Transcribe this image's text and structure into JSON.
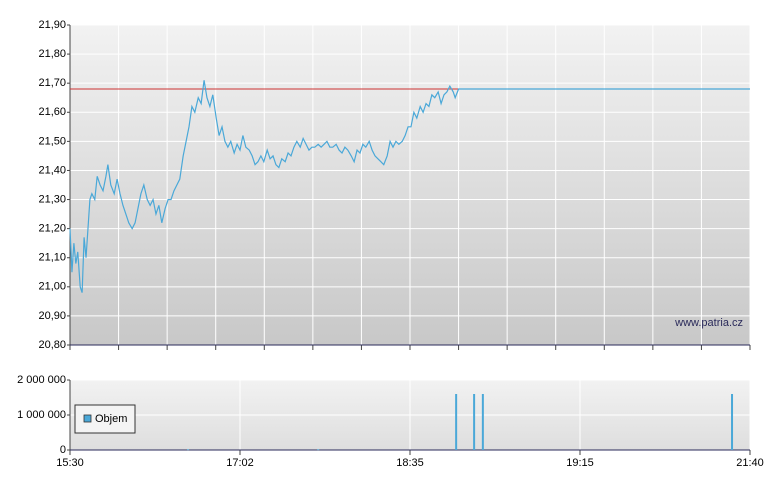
{
  "chart_data": [
    {
      "type": "line",
      "watermark": "www.patria.cz",
      "xlim": [
        0,
        14
      ],
      "xticks": [
        0,
        1,
        2,
        3,
        4,
        5,
        6,
        7,
        8,
        9,
        10,
        11,
        12,
        13,
        14
      ],
      "ylim": [
        20.8,
        21.9
      ],
      "yticks": [
        {
          "value": 20.8,
          "label": "20,80"
        },
        {
          "value": 20.9,
          "label": "20,90"
        },
        {
          "value": 21.0,
          "label": "21,00"
        },
        {
          "value": 21.1,
          "label": "21,10"
        },
        {
          "value": 21.2,
          "label": "21,20"
        },
        {
          "value": 21.3,
          "label": "21,30"
        },
        {
          "value": 21.4,
          "label": "21,40"
        },
        {
          "value": 21.5,
          "label": "21,50"
        },
        {
          "value": 21.6,
          "label": "21,60"
        },
        {
          "value": 21.7,
          "label": "21,70"
        },
        {
          "value": 21.8,
          "label": "21,80"
        },
        {
          "value": 21.9,
          "label": "21,90"
        }
      ],
      "grid": true,
      "reference": {
        "value": 21.68,
        "x": [
          0,
          8
        ],
        "color": "#cc3333"
      },
      "x": [
        0,
        0.04,
        0.08,
        0.12,
        0.16,
        0.21,
        0.25,
        0.29,
        0.33,
        0.37,
        0.41,
        0.45,
        0.51,
        0.56,
        0.62,
        0.68,
        0.74,
        0.78,
        0.84,
        0.91,
        0.97,
        1.03,
        1.09,
        1.15,
        1.21,
        1.28,
        1.34,
        1.4,
        1.46,
        1.52,
        1.59,
        1.65,
        1.71,
        1.77,
        1.83,
        1.89,
        1.96,
        2.02,
        2.08,
        2.14,
        2.2,
        2.26,
        2.33,
        2.39,
        2.45,
        2.51,
        2.57,
        2.64,
        2.7,
        2.76,
        2.82,
        2.88,
        2.94,
        3.01,
        3.07,
        3.13,
        3.19,
        3.25,
        3.31,
        3.38,
        3.44,
        3.5,
        3.56,
        3.62,
        3.69,
        3.75,
        3.81,
        3.87,
        3.93,
        3.99,
        4.06,
        4.12,
        4.18,
        4.24,
        4.3,
        4.36,
        4.43,
        4.49,
        4.55,
        4.61,
        4.67,
        4.74,
        4.8,
        4.86,
        4.92,
        4.98,
        5.04,
        5.11,
        5.17,
        5.23,
        5.29,
        5.35,
        5.41,
        5.48,
        5.54,
        5.6,
        5.66,
        5.72,
        5.79,
        5.85,
        5.91,
        5.97,
        6.03,
        6.09,
        6.16,
        6.22,
        6.28,
        6.34,
        6.4,
        6.46,
        6.53,
        6.59,
        6.65,
        6.71,
        6.77,
        6.84,
        6.9,
        6.96,
        7.02,
        7.08,
        7.14,
        7.21,
        7.27,
        7.33,
        7.39,
        7.45,
        7.51,
        7.58,
        7.64,
        7.7,
        7.76,
        7.82,
        7.89,
        7.93,
        8,
        14
      ],
      "series": [
        {
          "color": "#4aa8d8",
          "values": [
            21.2,
            21.05,
            21.15,
            21.08,
            21.12,
            21.0,
            20.98,
            21.17,
            21.1,
            21.2,
            21.3,
            21.32,
            21.3,
            21.38,
            21.35,
            21.33,
            21.38,
            21.42,
            21.35,
            21.32,
            21.37,
            21.32,
            21.28,
            21.25,
            21.22,
            21.2,
            21.22,
            21.27,
            21.32,
            21.35,
            21.3,
            21.28,
            21.3,
            21.25,
            21.28,
            21.22,
            21.27,
            21.3,
            21.3,
            21.33,
            21.35,
            21.37,
            21.45,
            21.5,
            21.55,
            21.62,
            21.6,
            21.65,
            21.63,
            21.71,
            21.65,
            21.62,
            21.66,
            21.58,
            21.52,
            21.55,
            21.5,
            21.48,
            21.5,
            21.46,
            21.49,
            21.47,
            21.52,
            21.48,
            21.47,
            21.45,
            21.42,
            21.43,
            21.45,
            21.43,
            21.47,
            21.44,
            21.45,
            21.42,
            21.41,
            21.44,
            21.43,
            21.46,
            21.45,
            21.48,
            21.5,
            21.48,
            21.51,
            21.49,
            21.47,
            21.48,
            21.48,
            21.49,
            21.48,
            21.49,
            21.5,
            21.48,
            21.48,
            21.49,
            21.47,
            21.46,
            21.48,
            21.47,
            21.45,
            21.43,
            21.47,
            21.46,
            21.49,
            21.48,
            21.5,
            21.47,
            21.45,
            21.44,
            21.43,
            21.42,
            21.45,
            21.5,
            21.48,
            21.5,
            21.49,
            21.5,
            21.52,
            21.55,
            21.55,
            21.6,
            21.58,
            21.62,
            21.6,
            21.63,
            21.62,
            21.66,
            21.65,
            21.67,
            21.63,
            21.66,
            21.67,
            21.69,
            21.67,
            21.65,
            21.68,
            21.68
          ]
        }
      ]
    },
    {
      "type": "bar",
      "xlim": [
        0,
        14
      ],
      "xticks": [
        {
          "value": 0,
          "label": "15:30"
        },
        {
          "value": 3.5,
          "label": "17:02"
        },
        {
          "value": 7,
          "label": "18:35"
        },
        {
          "value": 10.5,
          "label": "19:15"
        },
        {
          "value": 14,
          "label": "21:40"
        }
      ],
      "ylim": [
        0,
        2000000
      ],
      "yticks": [
        0,
        {
          "value": 1000000,
          "label": "1 000 000"
        },
        {
          "value": 2000000,
          "label": "2 000 000"
        }
      ],
      "grid": true,
      "legend": "bottom-left",
      "series": [
        {
          "name": "Objem",
          "color": "#4aa8d8",
          "x": [
            2.43,
            5.11,
            7.95,
            8.32,
            8.5,
            13.63
          ],
          "values": [
            20000,
            20000,
            1600000,
            1600000,
            1600000,
            1600000
          ]
        }
      ]
    }
  ]
}
